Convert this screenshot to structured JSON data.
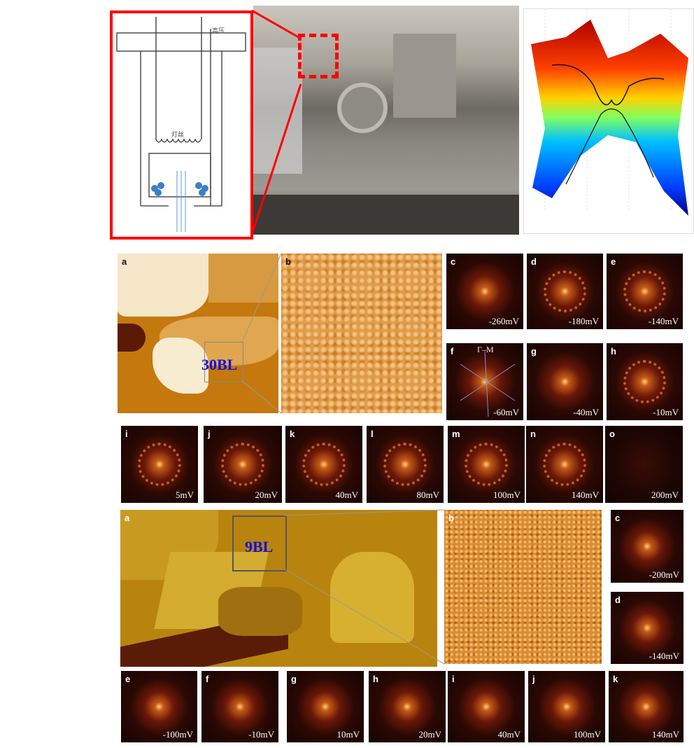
{
  "schematic": {
    "high_voltage_label": "高压",
    "filament_label": "灯丝"
  },
  "sample_30bl": {
    "overview_label": "a",
    "zoom_label": "b",
    "thickness_tag": "30BL",
    "fft_panels": [
      {
        "label": "c",
        "voltage": "-260mV"
      },
      {
        "label": "d",
        "voltage": "-180mV"
      },
      {
        "label": "e",
        "voltage": "-140mV"
      },
      {
        "label": "f",
        "voltage": "-60mV",
        "direction": "Γ–M"
      },
      {
        "label": "g",
        "voltage": "-40mV"
      },
      {
        "label": "h",
        "voltage": "-10mV"
      },
      {
        "label": "i",
        "voltage": "5mV"
      },
      {
        "label": "j",
        "voltage": "20mV"
      },
      {
        "label": "k",
        "voltage": "40mV"
      },
      {
        "label": "l",
        "voltage": "80mV"
      },
      {
        "label": "m",
        "voltage": "100mV"
      },
      {
        "label": "n",
        "voltage": "140mV"
      },
      {
        "label": "o",
        "voltage": "200mV"
      }
    ]
  },
  "sample_9bl": {
    "overview_label": "a",
    "zoom_label": "b",
    "thickness_tag": "9BL",
    "fft_panels": [
      {
        "label": "c",
        "voltage": "-200mV"
      },
      {
        "label": "d",
        "voltage": "-140mV"
      },
      {
        "label": "e",
        "voltage": "-100mV"
      },
      {
        "label": "f",
        "voltage": "-10mV"
      },
      {
        "label": "g",
        "voltage": "10mV"
      },
      {
        "label": "h",
        "voltage": "20mV"
      },
      {
        "label": "i",
        "voltage": "40mV"
      },
      {
        "label": "j",
        "voltage": "100mV"
      },
      {
        "label": "k",
        "voltage": "140mV"
      }
    ]
  },
  "colors": {
    "highlight": "#ff0000",
    "tag": "#1010e0"
  }
}
